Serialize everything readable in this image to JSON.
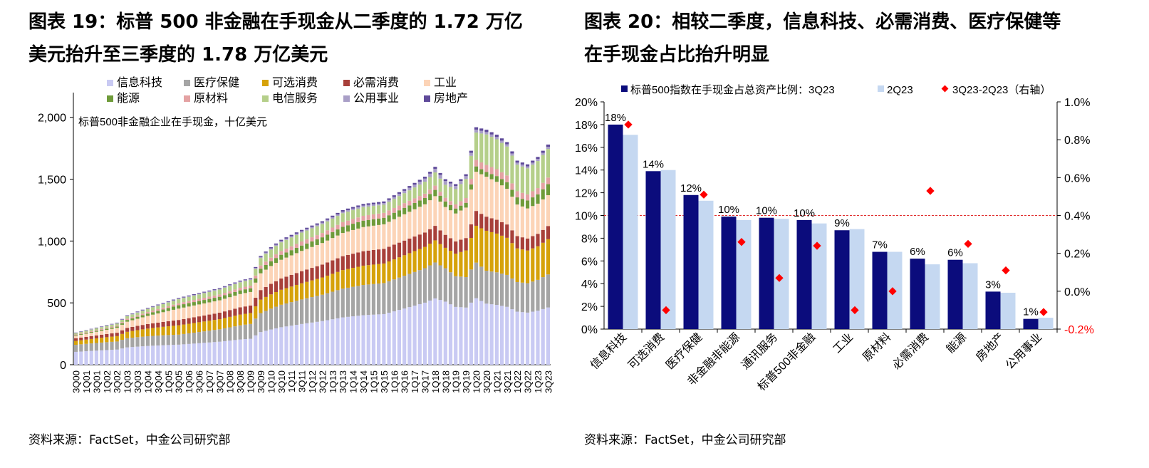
{
  "left": {
    "title_line1": "图表 19：标普 500 非金融在手现金从二季度的 1.72 万亿",
    "title_line2": "美元抬升至三季度的 1.78 万亿美元",
    "source": "资料来源：FactSet，中金公司研究部",
    "colors": {
      "信息科技": "#c9caf3",
      "医疗保健": "#a5a5a5",
      "可选消费": "#d6a20a",
      "必需消费": "#a8403a",
      "工业": "#fcd4b7",
      "能源": "#6f9b3a",
      "原材料": "#e4a2a3",
      "电信服务": "#b5cf8a",
      "公用事业": "#a99fc7",
      "房地产": "#5f4a9a"
    },
    "chart_data": {
      "type": "bar",
      "stacked": true,
      "annotation": "标普500非金融企业在手现金，十亿美元",
      "ylim": [
        0,
        2200
      ],
      "yticks": [
        "0",
        "500",
        "1,000",
        "1,500",
        "2,000"
      ],
      "ytick_values": [
        0,
        500,
        1000,
        1500,
        2000
      ],
      "xtick_labels": [
        "3Q00",
        "1Q01",
        "3Q01",
        "1Q02",
        "3Q02",
        "1Q03",
        "3Q03",
        "1Q04",
        "3Q04",
        "1Q05",
        "3Q05",
        "1Q06",
        "3Q06",
        "1Q07",
        "3Q07",
        "1Q08",
        "3Q08",
        "1Q09",
        "3Q09",
        "1Q10",
        "3Q10",
        "1Q11",
        "3Q11",
        "1Q12",
        "3Q12",
        "1Q13",
        "3Q13",
        "1Q14",
        "3Q14",
        "1Q15",
        "3Q15",
        "1Q16",
        "3Q16",
        "1Q17",
        "3Q17",
        "1Q18",
        "3Q18",
        "1Q19",
        "3Q19",
        "1Q20",
        "3Q20",
        "1Q21",
        "3Q21",
        "1Q22",
        "3Q22",
        "1Q23",
        "3Q23"
      ],
      "legend": [
        "信息科技",
        "医疗保健",
        "可选消费",
        "必需消费",
        "工业",
        "能源",
        "原材料",
        "电信服务",
        "公用事业",
        "房地产"
      ],
      "legend_position": "top",
      "shares_anchor_x": [
        0,
        20,
        40,
        60,
        72,
        80,
        92
      ],
      "shares_anchor": [
        [
          0.4,
          0.22,
          0.12,
          0.08,
          0.08,
          0.02,
          0.02,
          0.04,
          0.01,
          0.01
        ],
        [
          0.3,
          0.15,
          0.14,
          0.08,
          0.17,
          0.05,
          0.03,
          0.06,
          0.01,
          0.01
        ],
        [
          0.3,
          0.18,
          0.12,
          0.09,
          0.15,
          0.04,
          0.03,
          0.07,
          0.01,
          0.01
        ],
        [
          0.31,
          0.19,
          0.12,
          0.09,
          0.15,
          0.04,
          0.03,
          0.05,
          0.01,
          0.01
        ],
        [
          0.34,
          0.18,
          0.11,
          0.07,
          0.15,
          0.03,
          0.02,
          0.07,
          0.02,
          0.01
        ],
        [
          0.26,
          0.14,
          0.17,
          0.06,
          0.17,
          0.02,
          0.03,
          0.13,
          0.01,
          0.01
        ],
        [
          0.26,
          0.15,
          0.16,
          0.06,
          0.14,
          0.05,
          0.03,
          0.13,
          0.01,
          0.01
        ]
      ],
      "total_anchor_x": [
        0,
        4,
        8,
        10,
        14,
        20,
        24,
        28,
        30,
        32,
        34,
        36,
        38,
        40,
        44,
        48,
        52,
        56,
        60,
        64,
        68,
        70,
        72,
        74,
        76,
        78,
        80,
        82,
        84,
        86,
        88,
        90,
        92
      ],
      "total_anchor": [
        260,
        300,
        340,
        400,
        460,
        540,
        580,
        620,
        650,
        680,
        700,
        880,
        950,
        1010,
        1090,
        1160,
        1250,
        1300,
        1320,
        1420,
        1520,
        1600,
        1500,
        1460,
        1540,
        1920,
        1900,
        1860,
        1800,
        1650,
        1620,
        1680,
        1780
      ],
      "n_bars": 93
    }
  },
  "right": {
    "title_line1": "图表 20：相较二季度，信息科技、必需消费、医疗保健等",
    "title_line2": "在手现金占比抬升明显",
    "source": "资料来源：FactSet，中金公司研究部",
    "colors": {
      "3Q23": "#0b0c7c",
      "2Q23": "#c5d8f1",
      "diff": "#ff0000",
      "refline": "#e03030"
    },
    "chart_data": {
      "type": "bar",
      "categories": [
        "信息科技",
        "可选消费",
        "医疗保健",
        "非金融非能源",
        "通讯服务",
        "标普500非金融",
        "工业",
        "原材料",
        "必需消费",
        "能源",
        "房地产",
        "公用事业"
      ],
      "series": [
        {
          "name": "标普500指数在手现金占总资产比例：3Q23",
          "values": [
            18.0,
            13.9,
            11.8,
            9.9,
            9.8,
            9.6,
            8.7,
            6.8,
            6.2,
            6.1,
            3.3,
            0.9
          ]
        },
        {
          "name": "2Q23",
          "values": [
            17.1,
            14.0,
            11.3,
            9.6,
            9.7,
            9.3,
            8.8,
            6.8,
            5.7,
            5.8,
            3.2,
            1.0
          ]
        },
        {
          "name": "3Q23-2Q23（右轴）",
          "axis": "right",
          "type": "scatter",
          "values": [
            0.88,
            -0.1,
            0.51,
            0.26,
            0.07,
            0.24,
            -0.1,
            0.0,
            0.53,
            0.25,
            0.11,
            -0.11
          ]
        }
      ],
      "data_labels": [
        "18%",
        "14%",
        "12%",
        "10%",
        "10%",
        "10%",
        "9%",
        "7%",
        "6%",
        "6%",
        "3%",
        "1%"
      ],
      "ylim": [
        0,
        20
      ],
      "yticks": [
        "0%",
        "2%",
        "4%",
        "6%",
        "8%",
        "10%",
        "12%",
        "14%",
        "16%",
        "18%",
        "20%"
      ],
      "ytick_values": [
        0,
        2,
        4,
        6,
        8,
        10,
        12,
        14,
        16,
        18,
        20
      ],
      "y2lim": [
        -0.2,
        1.0
      ],
      "y2ticks": [
        "-0.2%",
        "0.0%",
        "0.2%",
        "0.4%",
        "0.6%",
        "0.8%",
        "1.0%"
      ],
      "y2tick_values": [
        -0.2,
        0.0,
        0.2,
        0.4,
        0.6,
        0.8,
        1.0
      ],
      "reference_line": 0.4,
      "legend_position": "top"
    }
  }
}
